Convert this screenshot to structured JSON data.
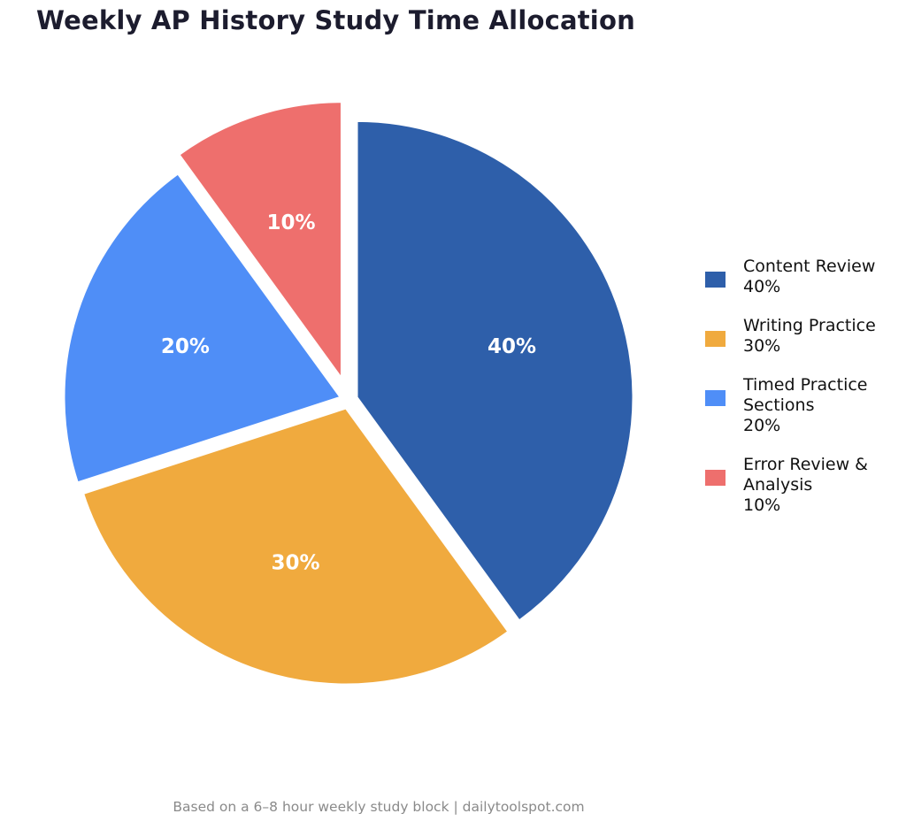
{
  "title": "Weekly AP History Study Time Allocation",
  "footer": "Based on a 6–8 hour weekly study block  |  dailytoolspot.com",
  "chart_data": {
    "type": "pie",
    "title": "Weekly AP History Study Time Allocation",
    "legend_position": "right",
    "slices": [
      {
        "label": "Content Review",
        "value": 40,
        "percent_label": "40%",
        "color": "#2e5faa"
      },
      {
        "label": "Writing Practice",
        "value": 30,
        "percent_label": "30%",
        "color": "#f0aa3e"
      },
      {
        "label": "Timed Practice Sections",
        "value": 20,
        "percent_label": "20%",
        "color": "#4f8ef7"
      },
      {
        "label": "Error Review & Analysis",
        "value": 10,
        "percent_label": "10%",
        "color": "#ee6f6d"
      }
    ]
  }
}
